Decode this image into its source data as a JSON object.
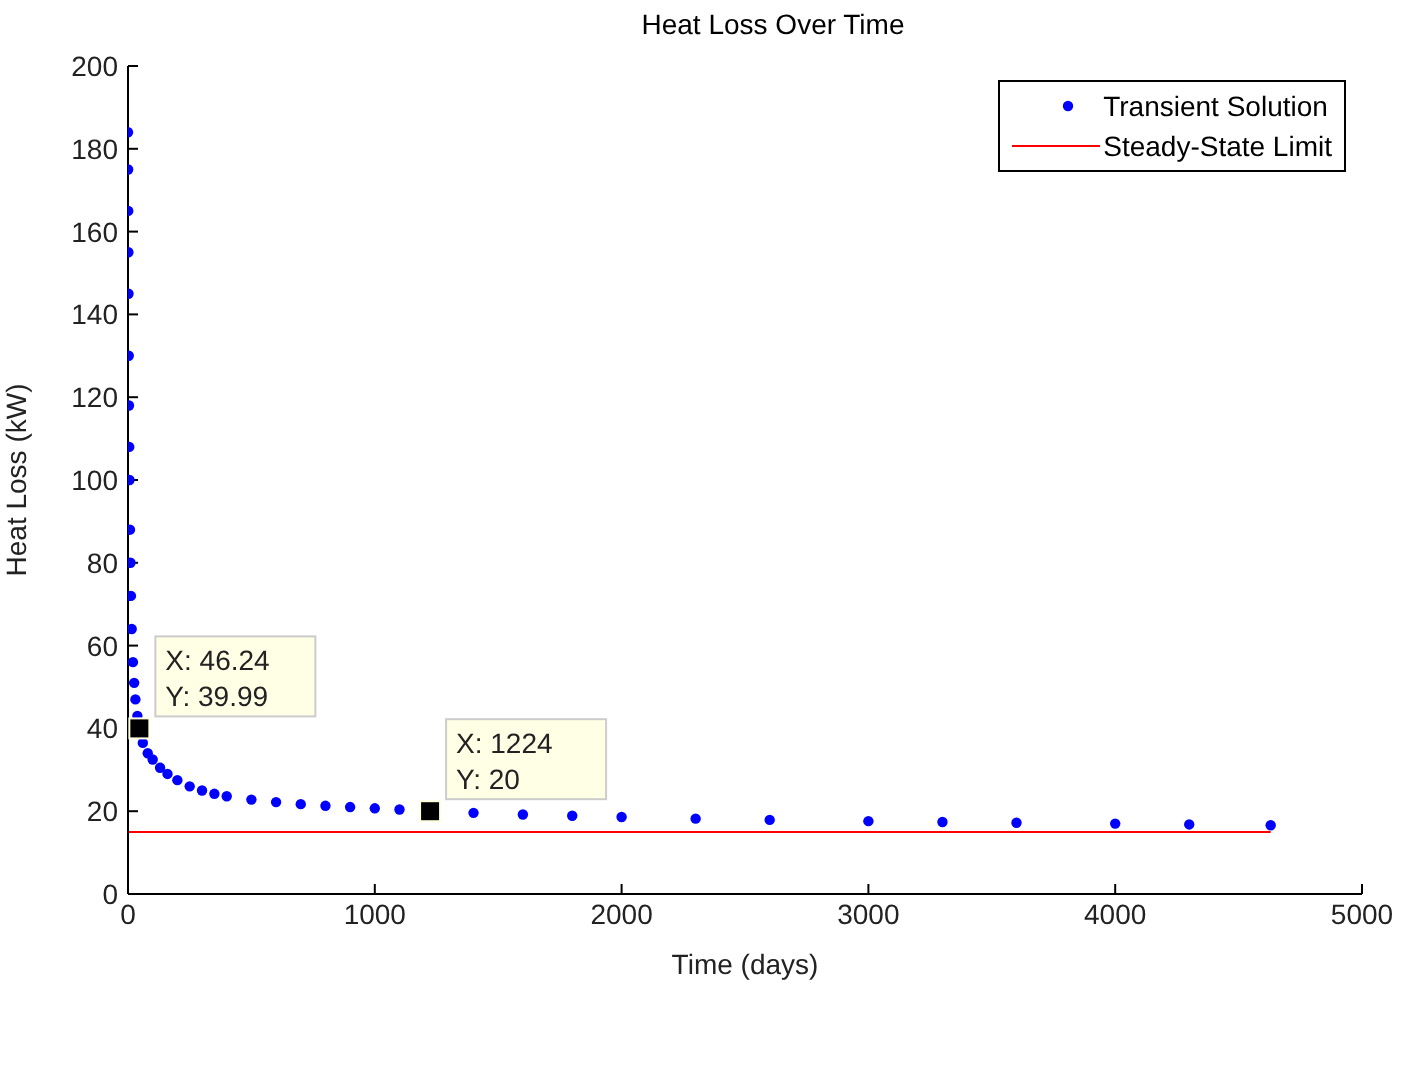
{
  "chart_data": {
    "type": "scatter",
    "title": "Heat Loss Over Time",
    "xlabel": "Time (days)",
    "ylabel": "Heat Loss (kW)",
    "xlim": [
      0,
      5000
    ],
    "xticks": [
      0,
      1000,
      2000,
      3000,
      4000,
      5000
    ],
    "ylim": [
      0,
      200
    ],
    "yticks": [
      0,
      20,
      40,
      60,
      80,
      100,
      120,
      140,
      160,
      180,
      200
    ],
    "grid": false,
    "legend": "top right",
    "series": [
      {
        "name": "Transient Solution",
        "marker": "circle",
        "color": "#0000ff",
        "x": [
          0,
          0.5,
          1,
          1.5,
          2,
          3,
          4,
          5,
          6,
          8,
          10,
          12,
          15,
          20,
          25,
          30,
          38,
          46,
          60,
          80,
          100,
          130,
          160,
          200,
          250,
          300,
          350,
          400,
          500,
          600,
          700,
          800,
          900,
          1000,
          1100,
          1400,
          1600,
          1800,
          2000,
          2300,
          2600,
          3000,
          3300,
          3600,
          4000,
          4300,
          4630
        ],
        "values": [
          184,
          175,
          165,
          155,
          145,
          130,
          118,
          108,
          100,
          88,
          80,
          72,
          64,
          56,
          51,
          47,
          43,
          40,
          36.5,
          34,
          32.5,
          30.5,
          29,
          27.5,
          26,
          25,
          24.2,
          23.6,
          22.8,
          22.2,
          21.7,
          21.3,
          21,
          20.7,
          20.4,
          19.6,
          19.2,
          18.9,
          18.6,
          18.2,
          17.9,
          17.6,
          17.4,
          17.2,
          17,
          16.8,
          16.6
        ]
      },
      {
        "name": "Steady-State Limit",
        "type": "line",
        "color": "#ff0000",
        "x": [
          0,
          4630
        ],
        "values": [
          15,
          15
        ]
      }
    ],
    "annotations": [
      {
        "text": "X: 46.24\nY: 39.99",
        "x": 46,
        "y": 40
      },
      {
        "text": "X: 1224\nY: 20",
        "x": 1224,
        "y": 20
      }
    ]
  }
}
